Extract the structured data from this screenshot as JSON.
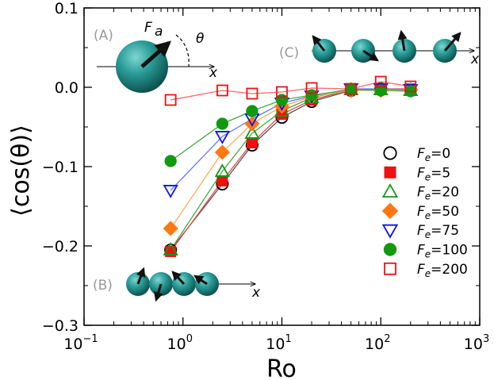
{
  "chart_data": {
    "type": "scatter",
    "title": "",
    "xlabel": "Ro",
    "ylabel": "⟨cos(θ)⟩",
    "xscale": "log",
    "xlim": [
      0.1,
      1000
    ],
    "ylim": [
      -0.3,
      0.1
    ],
    "x_ticks": [
      {
        "value": 0.1,
        "base": "10",
        "exp": "−1"
      },
      {
        "value": 1,
        "base": "10",
        "exp": "0"
      },
      {
        "value": 10,
        "base": "10",
        "exp": "1"
      },
      {
        "value": 100,
        "base": "10",
        "exp": "2"
      },
      {
        "value": 1000,
        "base": "10",
        "exp": "3"
      }
    ],
    "y_ticks": [
      {
        "value": 0.1,
        "label": "0.1"
      },
      {
        "value": 0.0,
        "label": "0.0"
      },
      {
        "value": -0.1,
        "label": "−0.1"
      },
      {
        "value": -0.2,
        "label": "−0.2"
      },
      {
        "value": -0.3,
        "label": "−0.3"
      }
    ],
    "x": [
      0.75,
      2.5,
      5,
      10,
      20,
      50,
      100,
      200
    ],
    "series": [
      {
        "name": "Fe=0",
        "label_sub": "e",
        "label_value": "=0",
        "marker": "circle-open",
        "color": "#000000",
        "line_color": "#555555",
        "values": [
          -0.205,
          -0.122,
          -0.073,
          -0.038,
          -0.018,
          -0.004,
          -0.002,
          -0.003
        ]
      },
      {
        "name": "Fe=5",
        "label_sub": "e",
        "label_value": "=5",
        "marker": "square-filled",
        "color": "#ee1111",
        "line_color": "#ee4444",
        "values": [
          -0.207,
          -0.118,
          -0.07,
          -0.034,
          -0.016,
          -0.003,
          -0.002,
          -0.002
        ]
      },
      {
        "name": "Fe=20",
        "label_sub": "e",
        "label_value": "=20",
        "marker": "triangle-up-open",
        "color": "#119911",
        "line_color": "#44aa44",
        "values": [
          -0.205,
          -0.106,
          -0.058,
          -0.03,
          -0.013,
          -0.003,
          -0.003,
          -0.004
        ]
      },
      {
        "name": "Fe=50",
        "label_sub": "e",
        "label_value": "=50",
        "marker": "diamond-filled",
        "color": "#ff7711",
        "line_color": "#ffaa55",
        "values": [
          -0.178,
          -0.082,
          -0.046,
          -0.024,
          -0.012,
          -0.004,
          -0.004,
          -0.003
        ]
      },
      {
        "name": "Fe=75",
        "label_sub": "e",
        "label_value": "=75",
        "marker": "triangle-down-open",
        "color": "#1111ee",
        "line_color": "#6677ff",
        "values": [
          -0.13,
          -0.062,
          -0.04,
          -0.02,
          -0.011,
          -0.002,
          -0.002,
          -0.003
        ]
      },
      {
        "name": "Fe=100",
        "label_sub": "e",
        "label_value": "=100",
        "marker": "circle-filled",
        "color": "#119911",
        "line_color": "#44aa44",
        "values": [
          -0.093,
          -0.046,
          -0.03,
          -0.016,
          -0.01,
          -0.003,
          -0.004,
          -0.005
        ]
      },
      {
        "name": "Fe=200",
        "label_sub": "e",
        "label_value": "=200",
        "marker": "square-open",
        "color": "#ee1111",
        "line_color": "#ff6666",
        "values": [
          -0.016,
          -0.004,
          -0.008,
          -0.006,
          -0.001,
          -0.002,
          0.007,
          0.001
        ]
      }
    ],
    "legend_position": "right",
    "legend_symbol": "F",
    "insets": [
      {
        "label": "(A)",
        "force_symbol": "F",
        "force_sub": "a",
        "angle_symbol": "θ",
        "axis_symbol": "x"
      },
      {
        "label": "(B)",
        "axis_symbol": "x"
      },
      {
        "label": "(C)",
        "axis_symbol": "x"
      }
    ]
  }
}
